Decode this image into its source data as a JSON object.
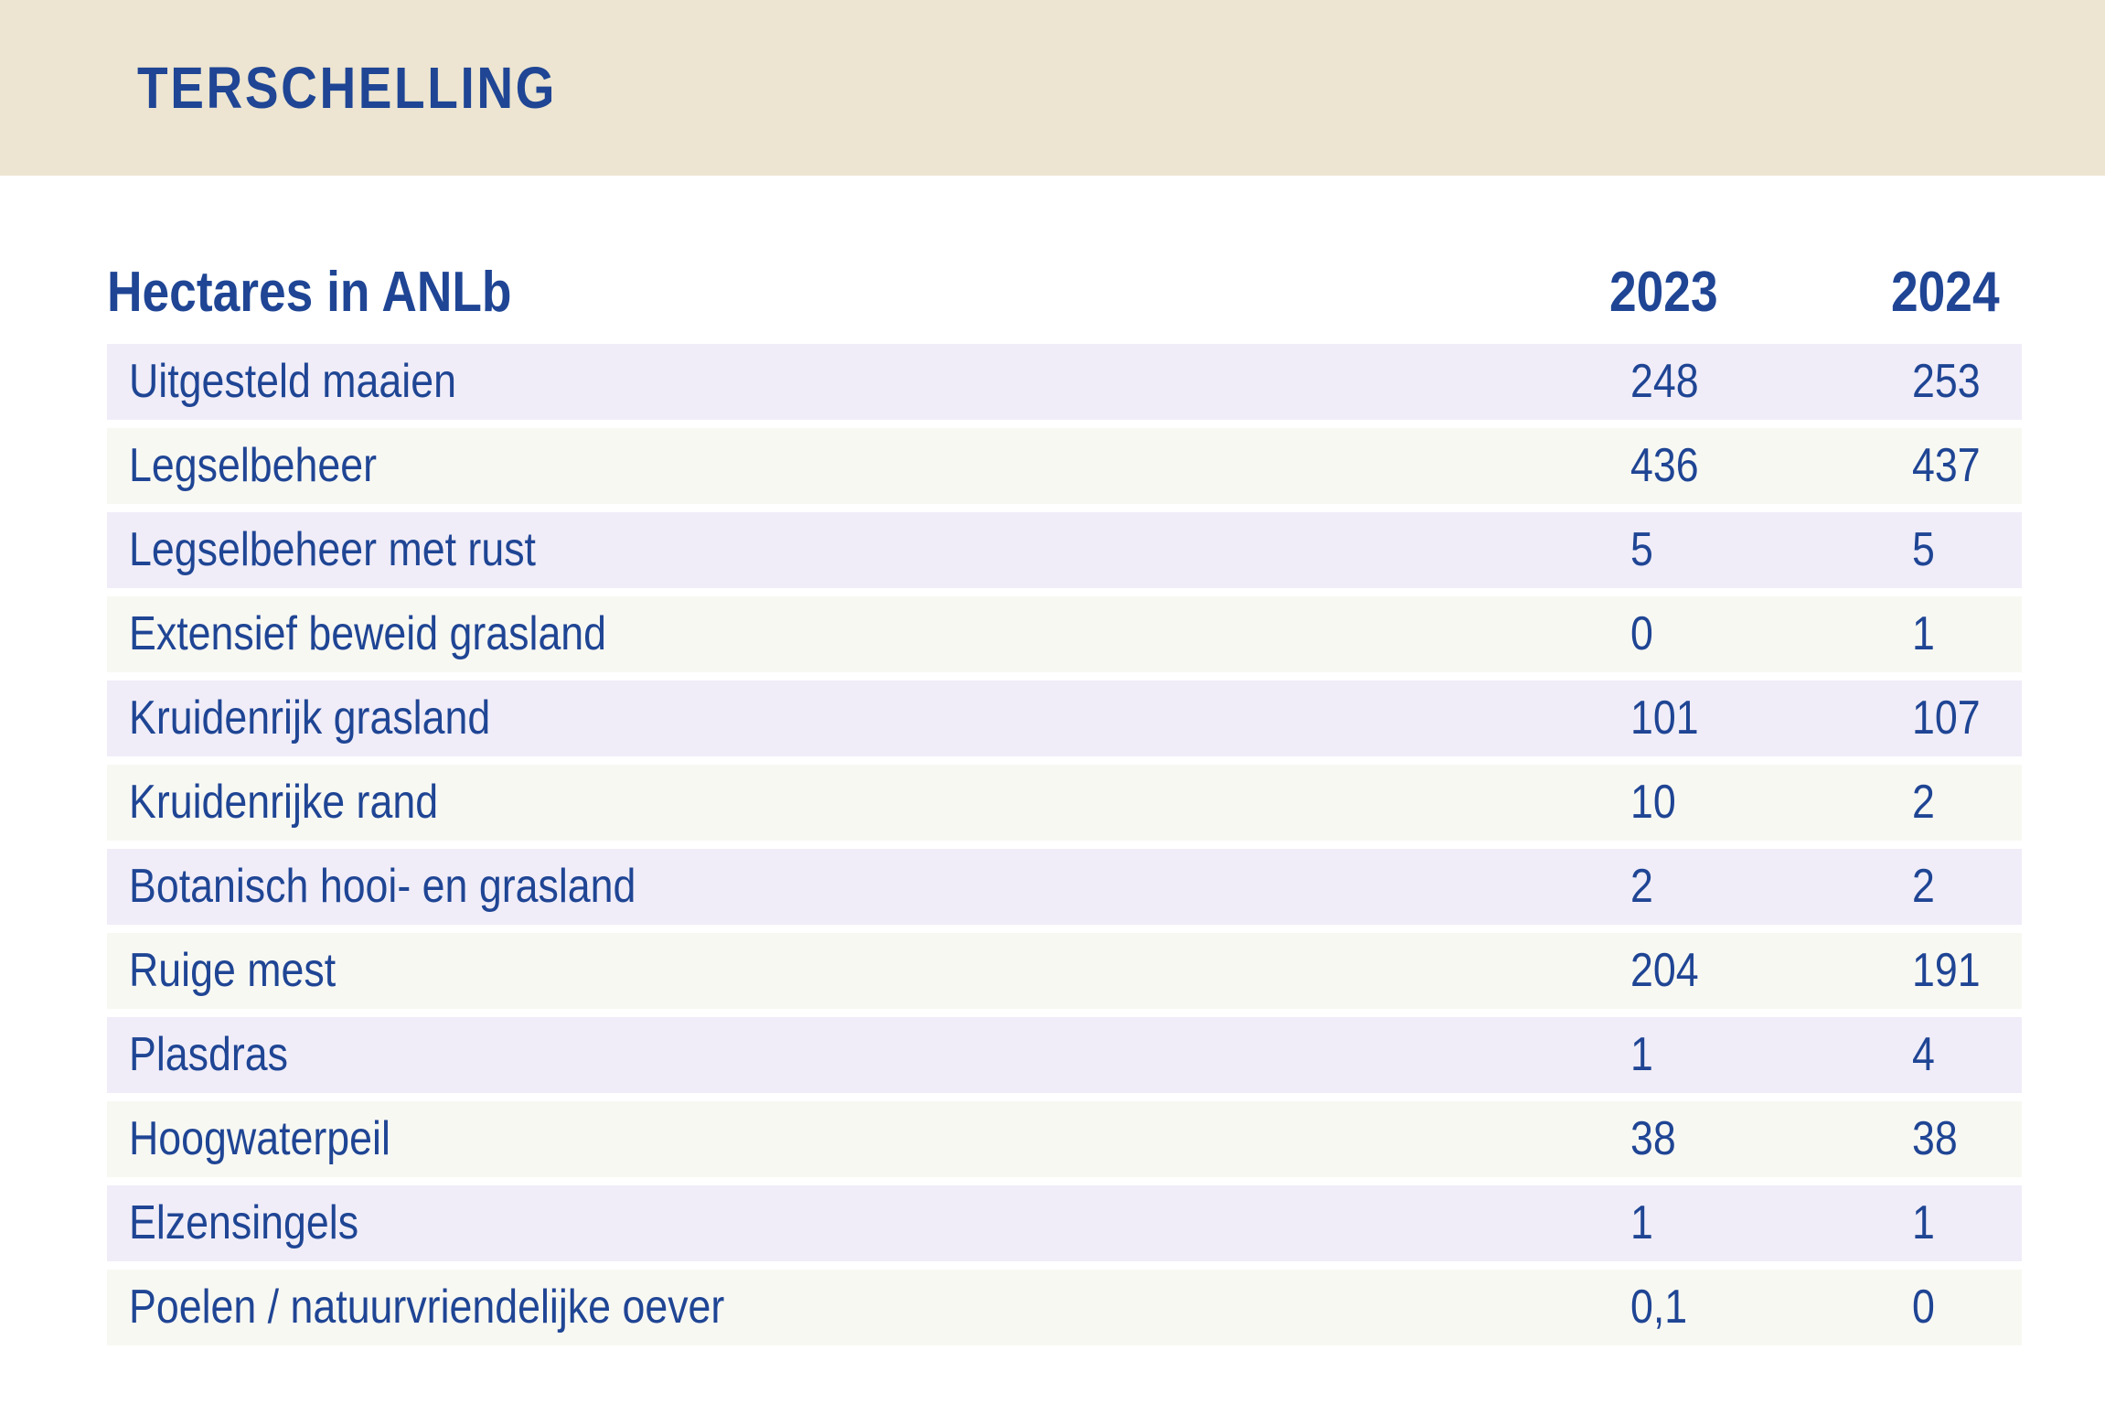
{
  "header": {
    "region": "TERSCHELLING"
  },
  "table": {
    "title": "Hectares in ANLb",
    "years": [
      "2023",
      "2024"
    ],
    "rows": [
      {
        "label": "Uitgesteld maaien",
        "v2023": "248",
        "v2024": "253"
      },
      {
        "label": "Legselbeheer",
        "v2023": "436",
        "v2024": "437"
      },
      {
        "label": "Legselbeheer met rust",
        "v2023": "5",
        "v2024": "5"
      },
      {
        "label": "Extensief beweid grasland",
        "v2023": "0",
        "v2024": "1"
      },
      {
        "label": "Kruidenrijk grasland",
        "v2023": "101",
        "v2024": "107"
      },
      {
        "label": "Kruidenrijke rand",
        "v2023": "10",
        "v2024": "2"
      },
      {
        "label": "Botanisch hooi- en grasland",
        "v2023": "2",
        "v2024": "2"
      },
      {
        "label": "Ruige mest",
        "v2023": "204",
        "v2024": "191"
      },
      {
        "label": "Plasdras",
        "v2023": "1",
        "v2024": "4"
      },
      {
        "label": "Hoogwaterpeil",
        "v2023": "38",
        "v2024": "38"
      },
      {
        "label": "Elzensingels",
        "v2023": "1",
        "v2024": "1"
      },
      {
        "label": "Poelen / natuurvriendelijke oever",
        "v2023": "0,1",
        "v2024": "0"
      }
    ]
  },
  "colors": {
    "header_band": "#ede5d1",
    "text": "#1f4594",
    "row_odd": "#f0edf8",
    "row_even": "#f8f8f3"
  }
}
